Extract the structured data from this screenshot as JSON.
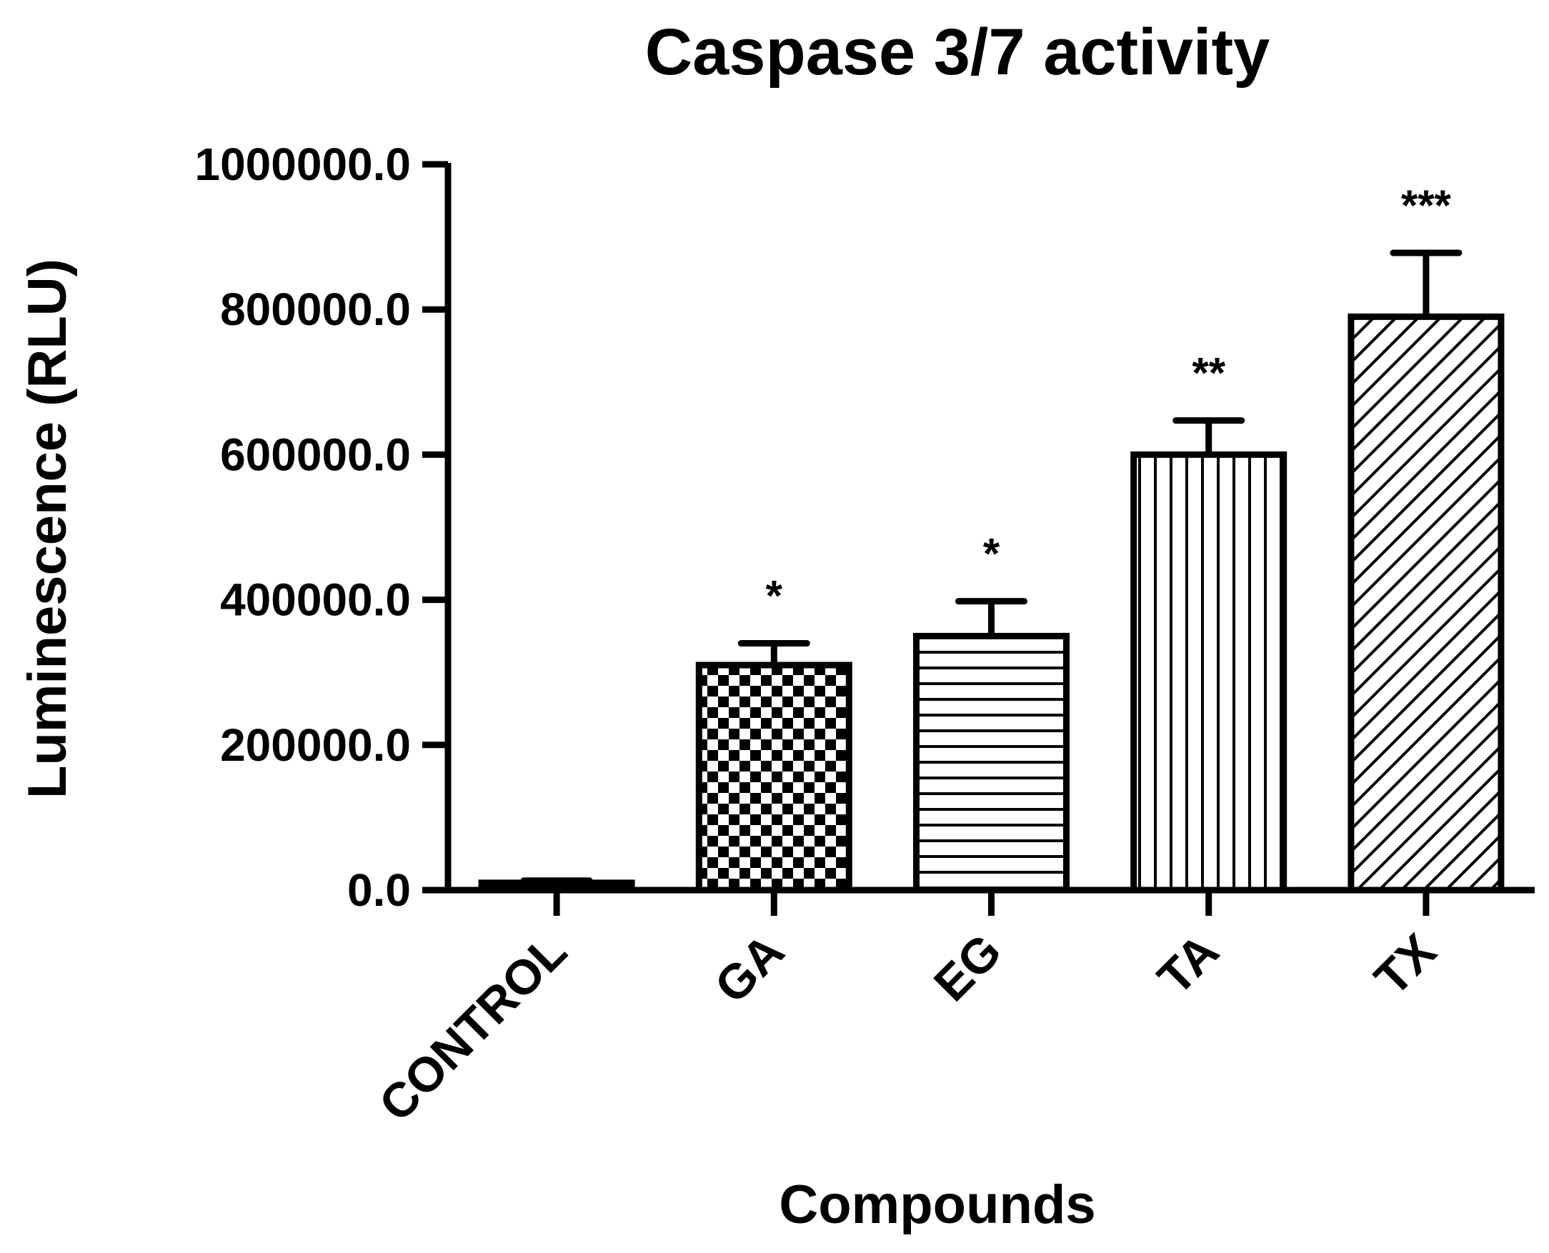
{
  "chart_data": {
    "type": "bar",
    "title": "Caspase 3/7 activity",
    "xlabel": "Compounds",
    "ylabel": "Luminescence (RLU)",
    "ylim": [
      0,
      1000000
    ],
    "yticks": [
      0,
      200000,
      400000,
      600000,
      800000,
      1000000
    ],
    "ytick_labels": [
      "0.0",
      "200000.0",
      "400000.0",
      "600000.0",
      "800000.0",
      "1000000.0"
    ],
    "categories": [
      "CONTROL",
      "GA",
      "EG",
      "TA",
      "TX"
    ],
    "values": [
      10000,
      310000,
      350000,
      600000,
      790000
    ],
    "errors": [
      3000,
      30000,
      48000,
      47000,
      88000
    ],
    "significance": [
      "",
      "*",
      "*",
      "**",
      "***"
    ],
    "patterns": [
      "solid",
      "checker",
      "horizontal",
      "vertical",
      "diagonal"
    ],
    "colors": {
      "bar_fill": "#ffffff",
      "bar_edge": "#000000",
      "pattern": "#000000"
    },
    "grid": false,
    "legend": "none"
  }
}
